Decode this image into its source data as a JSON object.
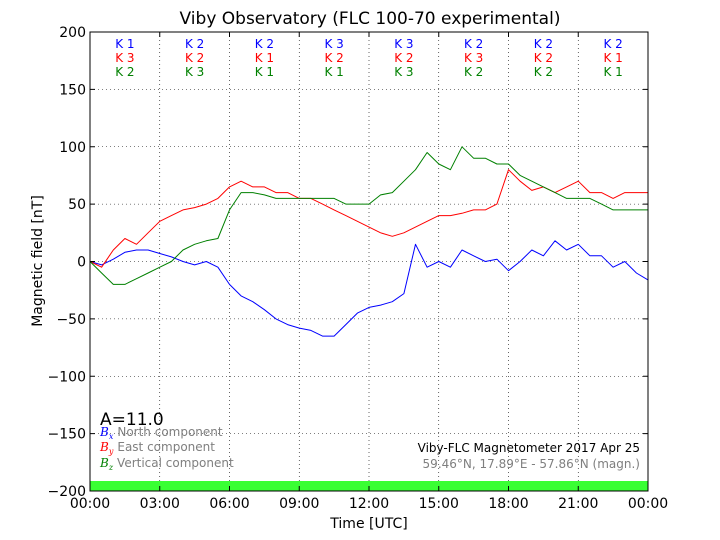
{
  "chart_data": {
    "type": "line",
    "title": "Viby Observatory (FLC 100-70 experimental)",
    "xlabel": "Time [UTC]",
    "ylabel": "Magnetic field [nT]",
    "xlim": [
      0,
      24
    ],
    "ylim": [
      -200,
      200
    ],
    "x_ticks": [
      0,
      3,
      6,
      9,
      12,
      15,
      18,
      21,
      24
    ],
    "x_tick_labels": [
      "00:00",
      "03:00",
      "06:00",
      "09:00",
      "12:00",
      "15:00",
      "18:00",
      "21:00",
      "00:00"
    ],
    "y_ticks": [
      -200,
      -150,
      -100,
      -50,
      0,
      50,
      100,
      150,
      200
    ],
    "y_tick_labels": [
      "−200",
      "−150",
      "−100",
      "−50",
      "0",
      "50",
      "100",
      "150",
      "200"
    ],
    "grid": true,
    "x_hours": [
      0,
      0.5,
      1,
      1.5,
      2,
      2.5,
      3,
      3.5,
      4,
      4.5,
      5,
      5.5,
      6,
      6.5,
      7,
      7.5,
      8,
      8.5,
      9,
      9.5,
      10,
      10.5,
      11,
      11.5,
      12,
      12.5,
      13,
      13.5,
      14,
      14.5,
      15,
      15.5,
      16,
      16.5,
      17,
      17.5,
      18,
      18.5,
      19,
      19.5,
      20,
      20.5,
      21,
      21.5,
      22,
      22.5,
      23,
      23.5,
      24
    ],
    "series": [
      {
        "name": "North component",
        "symbol": "B",
        "subscript": "x",
        "color": "#0000ff",
        "values": [
          0,
          -3,
          2,
          8,
          10,
          10,
          7,
          4,
          0,
          -3,
          0,
          -5,
          -20,
          -30,
          -35,
          -42,
          -50,
          -55,
          -58,
          -60,
          -65,
          -65,
          -55,
          -45,
          -40,
          -38,
          -35,
          -28,
          15,
          -5,
          0,
          -5,
          10,
          5,
          0,
          2,
          -8,
          0,
          10,
          5,
          18,
          10,
          15,
          5,
          5,
          -5,
          0,
          -10,
          -16
        ]
      },
      {
        "name": "East component",
        "symbol": "B",
        "subscript": "y",
        "color": "#ff0000",
        "values": [
          0,
          -5,
          10,
          20,
          15,
          25,
          35,
          40,
          45,
          47,
          50,
          55,
          65,
          70,
          65,
          65,
          60,
          60,
          55,
          55,
          50,
          45,
          40,
          35,
          30,
          25,
          22,
          25,
          30,
          35,
          40,
          40,
          42,
          45,
          45,
          50,
          80,
          70,
          62,
          65,
          60,
          65,
          70,
          60,
          60,
          55,
          60,
          60,
          60
        ]
      },
      {
        "name": "Vertical component",
        "symbol": "B",
        "subscript": "z",
        "color": "#008000",
        "values": [
          0,
          -10,
          -20,
          -20,
          -15,
          -10,
          -5,
          0,
          10,
          15,
          18,
          20,
          45,
          60,
          60,
          58,
          55,
          55,
          55,
          55,
          55,
          55,
          50,
          50,
          50,
          58,
          60,
          70,
          80,
          95,
          85,
          80,
          100,
          90,
          90,
          85,
          85,
          75,
          70,
          65,
          60,
          55,
          55,
          55,
          50,
          45,
          45,
          45,
          45
        ]
      }
    ],
    "k_indices": {
      "columns": [
        [
          "K 1",
          "K 3",
          "K 2"
        ],
        [
          "K 2",
          "K 2",
          "K 3"
        ],
        [
          "K 2",
          "K 1",
          "K 1"
        ],
        [
          "K 3",
          "K 2",
          "K 1"
        ],
        [
          "K 3",
          "K 2",
          "K 3"
        ],
        [
          "K 2",
          "K 3",
          "K 2"
        ],
        [
          "K 2",
          "K 2",
          "K 2"
        ],
        [
          "K 2",
          "K 1",
          "K 1"
        ]
      ]
    },
    "a_index": "A=11.0",
    "info_line1": "Viby-FLC Magnetometer 2017 Apr 25",
    "info_line2": "59.46°N, 17.89°E - 57.86°N (magn.)",
    "band_color": "#39ff33"
  }
}
